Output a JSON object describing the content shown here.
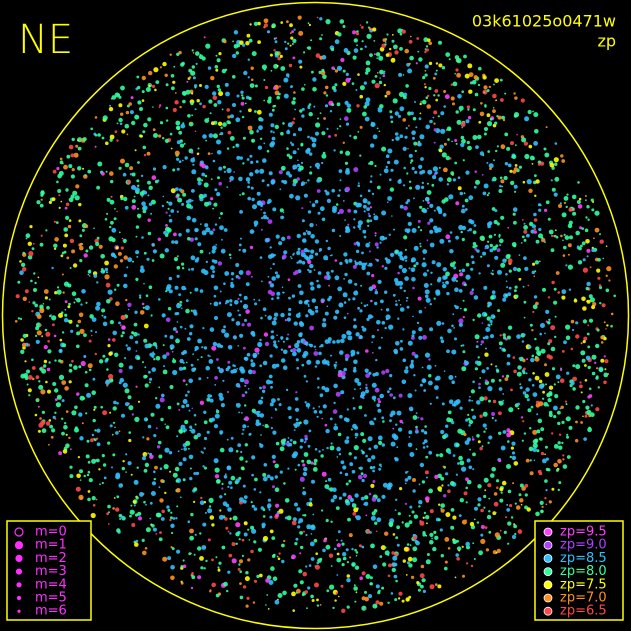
{
  "corner_label": "NE",
  "image_id": "03k61025o0471w",
  "mode": "zp",
  "magnitude_legend": {
    "color": "#ff30ff",
    "entries": [
      "m=0",
      "m=1",
      "m=2",
      "m=3",
      "m=4",
      "m=5",
      "m=6"
    ]
  },
  "zp_legend": {
    "entries": [
      {
        "label": "zp=9.5",
        "color": "#ff40ff"
      },
      {
        "label": "zp=9.0",
        "color": "#b040ff"
      },
      {
        "label": "zp=8.5",
        "color": "#30c0ff"
      },
      {
        "label": "zp=8.0",
        "color": "#30ffa0"
      },
      {
        "label": "zp=7.5",
        "color": "#ffff00"
      },
      {
        "label": "zp=7.0",
        "color": "#ff9020"
      },
      {
        "label": "zp=6.5",
        "color": "#ff4848"
      }
    ]
  }
}
